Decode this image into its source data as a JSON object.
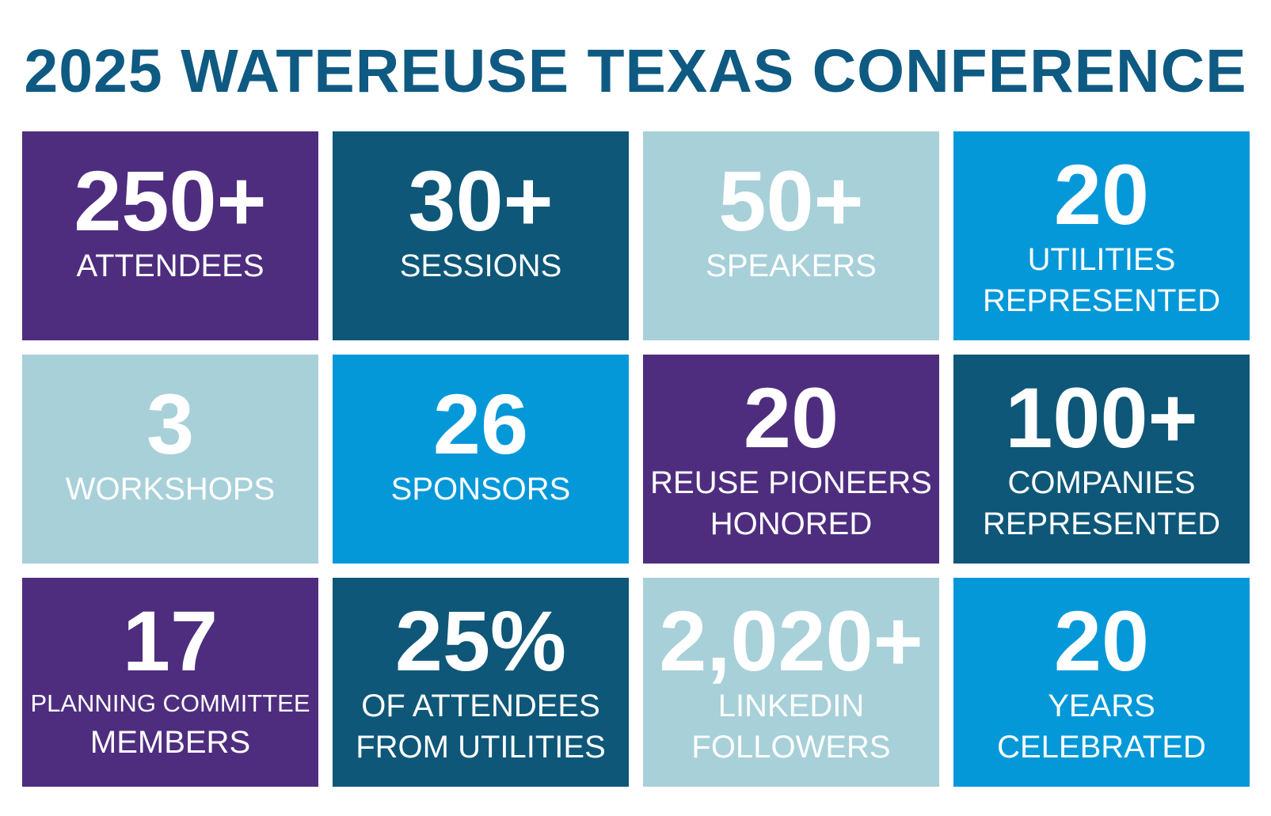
{
  "title": "2025 WATEREUSE TEXAS CONFERENCE",
  "colors": {
    "title": "#0e5a82",
    "purple": "#4e2d7f",
    "navy": "#0e5778",
    "light": "#a8d0d9",
    "sky": "#0498d9",
    "text": "#ffffff"
  },
  "stats": [
    {
      "value": "250+",
      "label_lines": [
        "ATTENDEES"
      ],
      "tone": "purple"
    },
    {
      "value": "30+",
      "label_lines": [
        "SESSIONS"
      ],
      "tone": "navy"
    },
    {
      "value": "50+",
      "label_lines": [
        "SPEAKERS"
      ],
      "tone": "light"
    },
    {
      "value": "20",
      "label_lines": [
        "UTILITIES",
        "REPRESENTED"
      ],
      "tone": "sky"
    },
    {
      "value": "3",
      "label_lines": [
        "WORKSHOPS"
      ],
      "tone": "light"
    },
    {
      "value": "26",
      "label_lines": [
        "SPONSORS"
      ],
      "tone": "sky"
    },
    {
      "value": "20",
      "label_lines": [
        "REUSE PIONEERS",
        "HONORED"
      ],
      "tone": "purple"
    },
    {
      "value": "100+",
      "label_lines": [
        "COMPANIES",
        "REPRESENTED"
      ],
      "tone": "navy"
    },
    {
      "value": "17",
      "label_lines": [
        "PLANNING COMMITTEE",
        "MEMBERS"
      ],
      "tone": "purple"
    },
    {
      "value": "25%",
      "label_lines": [
        "OF ATTENDEES",
        "FROM UTILITIES"
      ],
      "tone": "navy"
    },
    {
      "value": "2,020+",
      "label_lines": [
        "LINKEDIN",
        "FOLLOWERS"
      ],
      "tone": "light"
    },
    {
      "value": "20",
      "label_lines": [
        "YEARS",
        "CELEBRATED"
      ],
      "tone": "sky"
    }
  ]
}
